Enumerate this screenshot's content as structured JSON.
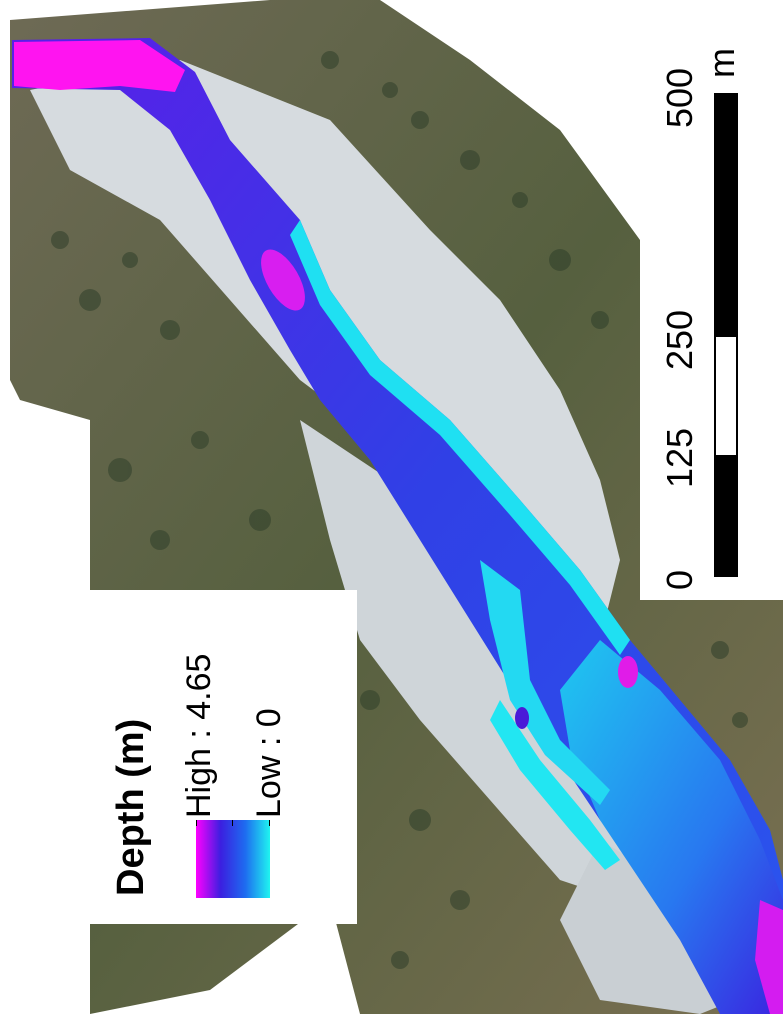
{
  "legend": {
    "title": "Depth (m)",
    "high_label": "High : 4.65",
    "low_label": "Low : 0",
    "ramp_colors": [
      "#ff00ff",
      "#3b1fe0",
      "#1e6cf0",
      "#1ff4f0"
    ]
  },
  "scale_bar": {
    "ticks": [
      "0",
      "125",
      "250",
      "500"
    ],
    "unit": "m"
  },
  "colors": {
    "forest": "#4a5a3a",
    "gravel_bar": "#d9dde0",
    "high_depth": "#ff00ff",
    "mid_depth": "#3b2ee8",
    "low_depth": "#22e6f2"
  }
}
